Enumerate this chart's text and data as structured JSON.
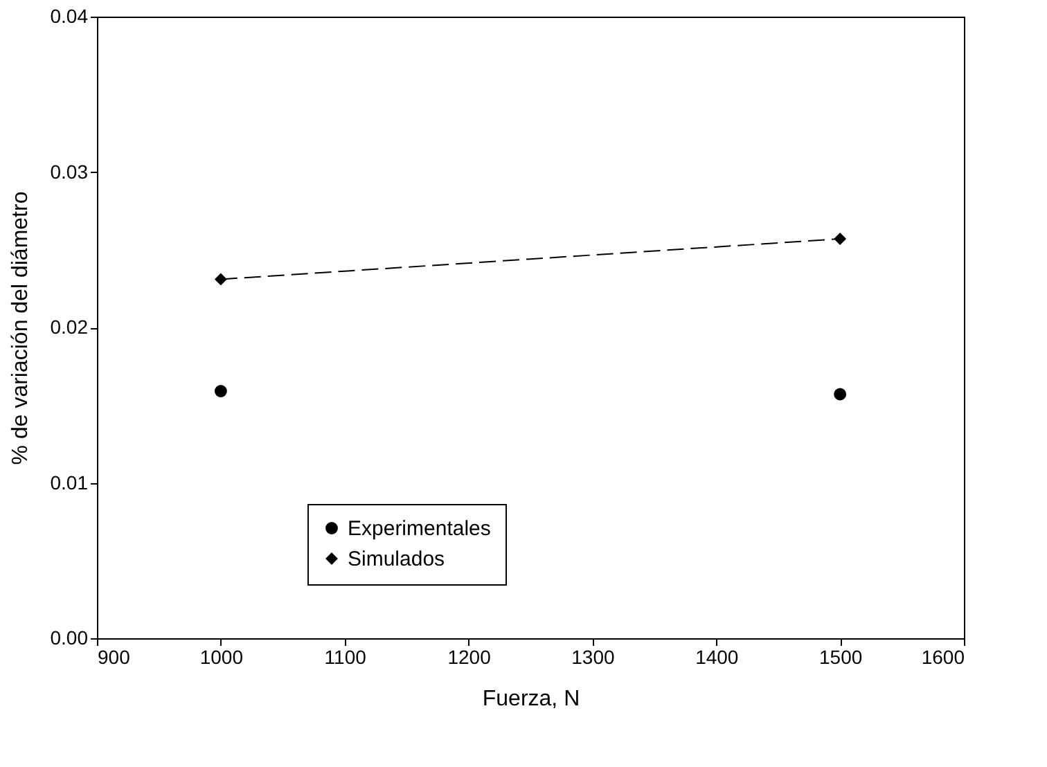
{
  "chart_data": {
    "type": "scatter",
    "xlabel": "Fuerza, N",
    "ylabel": "% de variación del diámetro",
    "x": [
      1000,
      1500
    ],
    "series": [
      {
        "name": "Experimentales",
        "type": "scatter",
        "color": "#000000",
        "marker": "circle",
        "values": [
          0.0159,
          0.0157
        ]
      },
      {
        "name": "Simulados",
        "type": "line",
        "color": "#000000",
        "marker": "diamond",
        "line_style": "dashed",
        "values": [
          0.0231,
          0.0257
        ]
      }
    ],
    "xlim": [
      900,
      1600
    ],
    "xticks": [
      900,
      1000,
      1100,
      1200,
      1300,
      1400,
      1500,
      1600
    ],
    "ylim": [
      0,
      0.04
    ],
    "yticks": [
      {
        "value": 0,
        "label": "0.00"
      },
      {
        "value": 0.01,
        "label": "0.01"
      },
      {
        "value": 0.02,
        "label": "0.02"
      },
      {
        "value": 0.03,
        "label": "0.03"
      },
      {
        "value": 0.04,
        "label": "0.04"
      }
    ],
    "grid": false,
    "legend": "bottom"
  }
}
